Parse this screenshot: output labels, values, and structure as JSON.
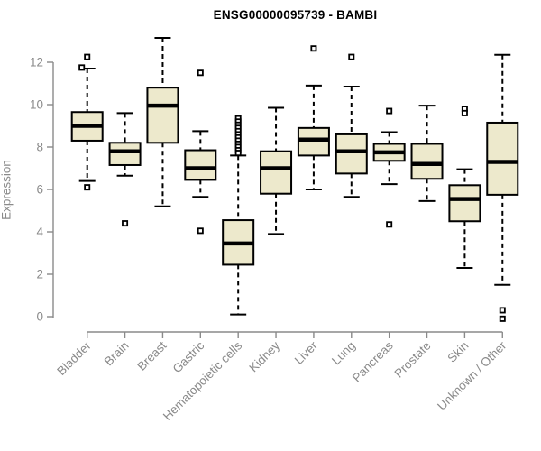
{
  "chart_data": {
    "type": "boxplot",
    "title": "ENSG00000095739 - BAMBI",
    "xlabel": "",
    "ylabel": "Expression",
    "ylim": [
      0,
      12
    ],
    "yticks": [
      0,
      2,
      4,
      6,
      8,
      10,
      12
    ],
    "grid": false,
    "legend_position": "none",
    "colors": {
      "background": "#ffffff",
      "box_fill": "#EDE9CC",
      "box_stroke": "#000000",
      "median": "#000000",
      "whisker": "#000000",
      "axis": "#8a8a8a",
      "label": "#8a8a8a",
      "title": "#000000"
    },
    "categories": [
      "Bladder",
      "Brain",
      "Breast",
      "Gastric",
      "Hematopoietic cells",
      "Kidney",
      "Liver",
      "Lung",
      "Pancreas",
      "Prostate",
      "Skin",
      "Unknown / Other"
    ],
    "series": [
      {
        "category": "Bladder",
        "whisker_low": 6.4,
        "q1": 8.3,
        "median": 9.0,
        "q3": 9.65,
        "whisker_high": 11.7,
        "outliers": [
          {
            "v": 12.25
          },
          {
            "v": 11.75,
            "dx": -6
          },
          {
            "v": 6.1
          }
        ]
      },
      {
        "category": "Brain",
        "whisker_low": 6.65,
        "q1": 7.15,
        "median": 7.8,
        "q3": 8.2,
        "whisker_high": 9.6,
        "outliers": [
          {
            "v": 4.4
          }
        ]
      },
      {
        "category": "Breast",
        "whisker_low": 5.2,
        "q1": 8.2,
        "median": 9.95,
        "q3": 10.8,
        "whisker_high": 13.15,
        "outliers": []
      },
      {
        "category": "Gastric",
        "whisker_low": 5.65,
        "q1": 6.45,
        "median": 7.0,
        "q3": 7.85,
        "whisker_high": 8.75,
        "outliers": [
          {
            "v": 11.5
          },
          {
            "v": 4.05
          }
        ]
      },
      {
        "category": "Hematopoietic cells",
        "whisker_low": 0.1,
        "q1": 2.45,
        "median": 3.45,
        "q3": 4.55,
        "whisker_high": 7.6,
        "outliers": [
          {
            "v": 9.35
          },
          {
            "v": 9.2
          },
          {
            "v": 9.05
          },
          {
            "v": 8.9
          },
          {
            "v": 8.75
          },
          {
            "v": 8.6
          },
          {
            "v": 8.45
          },
          {
            "v": 8.3
          },
          {
            "v": 8.15
          },
          {
            "v": 8.0
          },
          {
            "v": 7.85
          },
          {
            "v": 7.72
          }
        ]
      },
      {
        "category": "Kidney",
        "whisker_low": 3.9,
        "q1": 5.8,
        "median": 7.0,
        "q3": 7.8,
        "whisker_high": 9.85,
        "outliers": []
      },
      {
        "category": "Liver",
        "whisker_low": 6.0,
        "q1": 7.6,
        "median": 8.35,
        "q3": 8.9,
        "whisker_high": 10.9,
        "outliers": [
          {
            "v": 12.65
          }
        ]
      },
      {
        "category": "Lung",
        "whisker_low": 5.65,
        "q1": 6.75,
        "median": 7.8,
        "q3": 8.6,
        "whisker_high": 10.85,
        "outliers": [
          {
            "v": 12.25
          }
        ]
      },
      {
        "category": "Pancreas",
        "whisker_low": 6.25,
        "q1": 7.35,
        "median": 7.75,
        "q3": 8.15,
        "whisker_high": 8.7,
        "outliers": [
          {
            "v": 9.7
          },
          {
            "v": 4.35
          }
        ]
      },
      {
        "category": "Prostate",
        "whisker_low": 5.45,
        "q1": 6.5,
        "median": 7.2,
        "q3": 8.15,
        "whisker_high": 9.95,
        "outliers": []
      },
      {
        "category": "Skin",
        "whisker_low": 2.3,
        "q1": 4.5,
        "median": 5.55,
        "q3": 6.2,
        "whisker_high": 6.95,
        "outliers": [
          {
            "v": 9.8
          },
          {
            "v": 9.6
          }
        ]
      },
      {
        "category": "Unknown / Other",
        "whisker_low": 1.5,
        "q1": 5.75,
        "median": 7.3,
        "q3": 9.15,
        "whisker_high": 12.35,
        "outliers": [
          {
            "v": 0.3
          },
          {
            "v": -0.1
          }
        ]
      }
    ]
  }
}
